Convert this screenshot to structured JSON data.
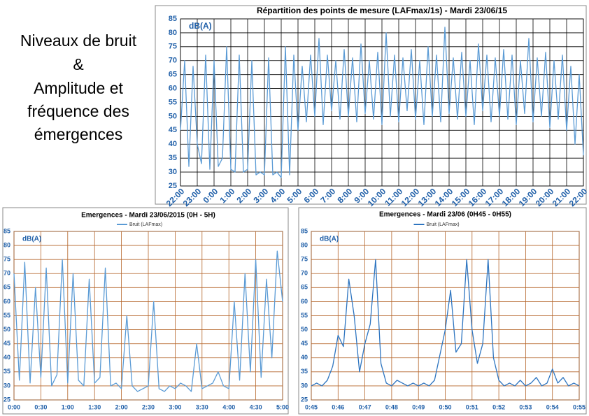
{
  "slide": {
    "text_lines": [
      "Niveaux de bruit",
      "&",
      "Amplitude et",
      "fréquence des",
      "émergences"
    ]
  },
  "chart_data": [
    {
      "type": "line",
      "title": "Répartition des points de mesure (LAFmax/1s) - Mardi 23/06/15",
      "y_label": "dB(A)",
      "grid": true,
      "grid_color": "#000000",
      "rotate_x_labels": true,
      "x": [
        0,
        0.25,
        0.5,
        0.75,
        1,
        1.25,
        1.5,
        1.75,
        2,
        2.25,
        2.5,
        2.75,
        3,
        3.25,
        3.5,
        3.75,
        4,
        4.25,
        4.5,
        4.75,
        5,
        5.25,
        5.5,
        5.75,
        6,
        6.25,
        6.5,
        6.75,
        7,
        7.25,
        7.5,
        7.75,
        8,
        8.25,
        8.5,
        8.75,
        9,
        9.25,
        9.5,
        9.75,
        10,
        10.25,
        10.5,
        10.75,
        11,
        11.25,
        11.5,
        11.75,
        12,
        12.25,
        12.5,
        12.75,
        13,
        13.25,
        13.5,
        13.75,
        14,
        14.25,
        14.5,
        14.75,
        15,
        15.25,
        15.5,
        15.75,
        16,
        16.25,
        16.5,
        16.75,
        17,
        17.25,
        17.5,
        17.75,
        18,
        18.25,
        18.5,
        18.75,
        19,
        19.25,
        19.5,
        19.75,
        20,
        20.25,
        20.5,
        20.75,
        21,
        21.25,
        21.5,
        21.75,
        22,
        22.25,
        22.5,
        22.75,
        23,
        23.25,
        23.5,
        23.75,
        24
      ],
      "series": [
        {
          "color": "#5b9bd5",
          "values": [
            45,
            70,
            32,
            68,
            40,
            33,
            72,
            31,
            70,
            32,
            35,
            75,
            31,
            30,
            72,
            30,
            31,
            70,
            29,
            30,
            29,
            71,
            29,
            30,
            28,
            75,
            29,
            72,
            45,
            68,
            48,
            72,
            50,
            78,
            47,
            72,
            52,
            70,
            49,
            74,
            50,
            71,
            48,
            76,
            51,
            70,
            49,
            73,
            47,
            80,
            50,
            72,
            48,
            71,
            52,
            74,
            49,
            70,
            47,
            75,
            50,
            72,
            48,
            82,
            51,
            71,
            49,
            73,
            50,
            70,
            47,
            76,
            52,
            72,
            48,
            71,
            50,
            74,
            49,
            72,
            47,
            70,
            51,
            78,
            48,
            71,
            50,
            73,
            46,
            70,
            49,
            72,
            45,
            68,
            40,
            65,
            36
          ]
        }
      ],
      "xlim": [
        0,
        24
      ],
      "xticks": [
        {
          "value": 0,
          "label": "22:00"
        },
        {
          "value": 1,
          "label": "23:00"
        },
        {
          "value": 2,
          "label": "0:00"
        },
        {
          "value": 3,
          "label": "1:00"
        },
        {
          "value": 4,
          "label": "2:00"
        },
        {
          "value": 5,
          "label": "3:00"
        },
        {
          "value": 6,
          "label": "4:00"
        },
        {
          "value": 7,
          "label": "5:00"
        },
        {
          "value": 8,
          "label": "6:00"
        },
        {
          "value": 9,
          "label": "7:00"
        },
        {
          "value": 10,
          "label": "8:00"
        },
        {
          "value": 11,
          "label": "9:00"
        },
        {
          "value": 12,
          "label": "10:00"
        },
        {
          "value": 13,
          "label": "11:00"
        },
        {
          "value": 14,
          "label": "12:00"
        },
        {
          "value": 15,
          "label": "13:00"
        },
        {
          "value": 16,
          "label": "14:00"
        },
        {
          "value": 17,
          "label": "15:00"
        },
        {
          "value": 18,
          "label": "16:00"
        },
        {
          "value": 19,
          "label": "17:00"
        },
        {
          "value": 20,
          "label": "18:00"
        },
        {
          "value": 21,
          "label": "19:00"
        },
        {
          "value": 22,
          "label": "20:00"
        },
        {
          "value": 23,
          "label": "21:00"
        },
        {
          "value": 24,
          "label": "22:00"
        }
      ],
      "ylim": [
        25,
        85
      ],
      "yticks": [
        25,
        30,
        35,
        40,
        45,
        50,
        55,
        60,
        65,
        70,
        75,
        80,
        85
      ]
    },
    {
      "type": "line",
      "title": "Emergences - Mardi 23/06/2015 (0H - 5H)",
      "y_label": "dB(A)",
      "grid": true,
      "grid_color": "#b5652a",
      "rotate_x_labels": false,
      "x": [
        0,
        0.1,
        0.2,
        0.3,
        0.4,
        0.5,
        0.6,
        0.7,
        0.8,
        0.9,
        1,
        1.1,
        1.2,
        1.3,
        1.4,
        1.5,
        1.6,
        1.7,
        1.8,
        1.9,
        2,
        2.1,
        2.2,
        2.3,
        2.4,
        2.5,
        2.6,
        2.7,
        2.8,
        2.9,
        3,
        3.1,
        3.2,
        3.3,
        3.4,
        3.5,
        3.6,
        3.7,
        3.8,
        3.9,
        4,
        4.1,
        4.2,
        4.3,
        4.4,
        4.5,
        4.6,
        4.7,
        4.8,
        4.9,
        5
      ],
      "series": [
        {
          "name": "Bruit (LAFmax)",
          "color": "#5b9bd5",
          "values": [
            70,
            32,
            74,
            31,
            65,
            33,
            72,
            30,
            34,
            75,
            31,
            70,
            32,
            30,
            68,
            31,
            33,
            72,
            30,
            31,
            29,
            55,
            30,
            28,
            29,
            30,
            60,
            29,
            28,
            30,
            29,
            31,
            30,
            28,
            45,
            29,
            30,
            31,
            35,
            30,
            29,
            60,
            32,
            70,
            35,
            75,
            33,
            68,
            40,
            78,
            60
          ]
        }
      ],
      "xlim": [
        0,
        5
      ],
      "xticks": [
        {
          "value": 0,
          "label": "0:00"
        },
        {
          "value": 0.5,
          "label": "0:30"
        },
        {
          "value": 1,
          "label": "1:00"
        },
        {
          "value": 1.5,
          "label": "1:30"
        },
        {
          "value": 2,
          "label": "2:00"
        },
        {
          "value": 2.5,
          "label": "2:30"
        },
        {
          "value": 3,
          "label": "3:00"
        },
        {
          "value": 3.5,
          "label": "3:30"
        },
        {
          "value": 4,
          "label": "4:00"
        },
        {
          "value": 4.5,
          "label": "4:30"
        },
        {
          "value": 5,
          "label": "5:00"
        }
      ],
      "ylim": [
        25,
        85
      ],
      "yticks": [
        25,
        30,
        35,
        40,
        45,
        50,
        55,
        60,
        65,
        70,
        75,
        80,
        85
      ]
    },
    {
      "type": "line",
      "title": "Emergences - Mardi 23/06 (0H45 - 0H55)",
      "y_label": "dB(A)",
      "grid": true,
      "grid_color": "#b5652a",
      "rotate_x_labels": false,
      "x": [
        45,
        45.2,
        45.4,
        45.6,
        45.8,
        46,
        46.2,
        46.4,
        46.6,
        46.8,
        47,
        47.2,
        47.4,
        47.6,
        47.8,
        48,
        48.2,
        48.4,
        48.6,
        48.8,
        49,
        49.2,
        49.4,
        49.6,
        49.8,
        50,
        50.2,
        50.4,
        50.6,
        50.8,
        51,
        51.2,
        51.4,
        51.6,
        51.8,
        52,
        52.2,
        52.4,
        52.6,
        52.8,
        53,
        53.2,
        53.4,
        53.6,
        53.8,
        54,
        54.2,
        54.4,
        54.6,
        54.8,
        55
      ],
      "series": [
        {
          "name": "Bruit (LAFmax)",
          "color": "#2e75c0",
          "values": [
            30,
            31,
            30,
            32,
            37,
            48,
            44,
            68,
            55,
            35,
            45,
            52,
            75,
            38,
            31,
            30,
            32,
            31,
            30,
            31,
            30,
            31,
            30,
            32,
            41,
            50,
            64,
            42,
            45,
            75,
            50,
            38,
            45,
            75,
            40,
            32,
            30,
            31,
            30,
            32,
            30,
            31,
            33,
            30,
            31,
            36,
            31,
            33,
            30,
            31,
            30
          ]
        }
      ],
      "xlim": [
        45,
        55
      ],
      "xticks": [
        {
          "value": 45,
          "label": "0:45"
        },
        {
          "value": 46,
          "label": "0:46"
        },
        {
          "value": 47,
          "label": "0:47"
        },
        {
          "value": 48,
          "label": "0:48"
        },
        {
          "value": 49,
          "label": "0:49"
        },
        {
          "value": 50,
          "label": "0:50"
        },
        {
          "value": 51,
          "label": "0:51"
        },
        {
          "value": 52,
          "label": "0:52"
        },
        {
          "value": 53,
          "label": "0:53"
        },
        {
          "value": 54,
          "label": "0:54"
        },
        {
          "value": 55,
          "label": "0:55"
        }
      ],
      "ylim": [
        25,
        85
      ],
      "yticks": [
        25,
        30,
        35,
        40,
        45,
        50,
        55,
        60,
        65,
        70,
        75,
        80,
        85
      ]
    }
  ]
}
